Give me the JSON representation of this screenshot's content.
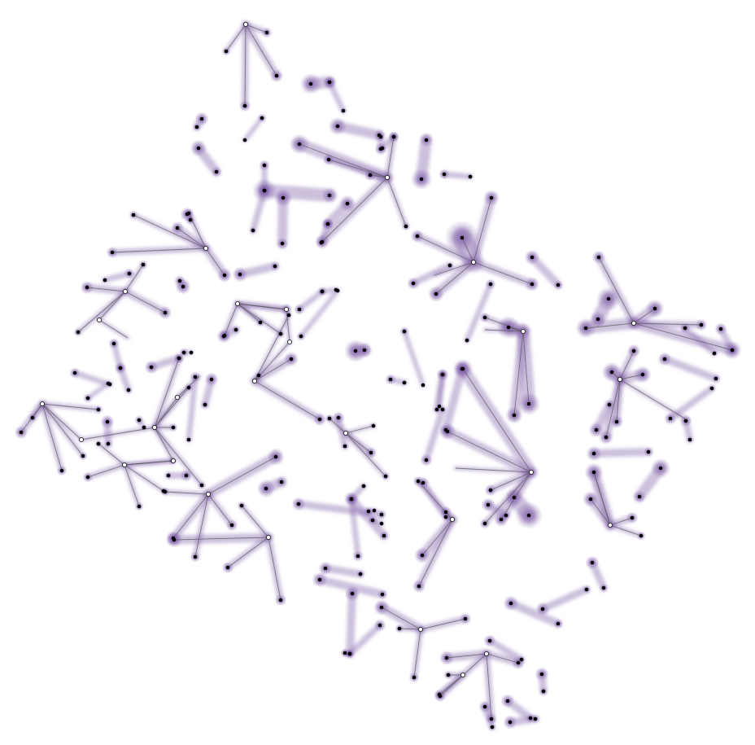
{
  "diagram": {
    "kind": "network-graph",
    "edge_color": "#5a5a5a",
    "halo_color": "#7b5aa6",
    "node_fill_dark": "#000000",
    "node_fill_light": "#ffffff",
    "node_stroke": "#222222"
  }
}
